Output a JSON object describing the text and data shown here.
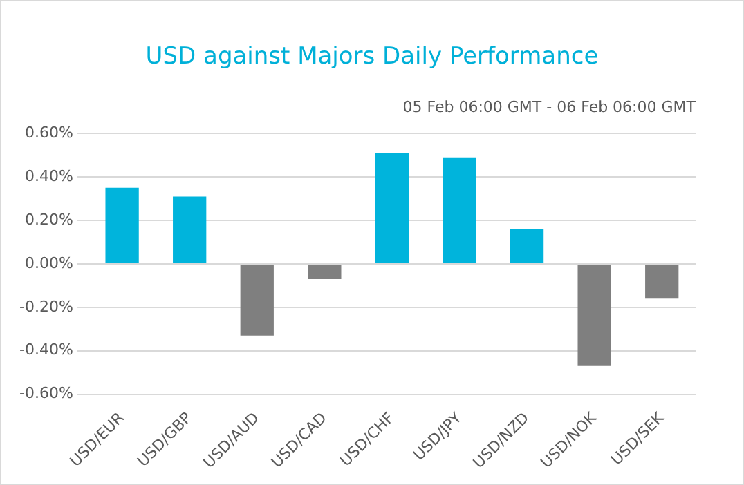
{
  "chart_data": {
    "type": "bar",
    "title": "USD against Majors Daily Performance",
    "subtitle": "05  Feb 06:00 GMT - 06 Feb  06:00 GMT",
    "categories": [
      "USD/EUR",
      "USD/GBP",
      "USD/AUD",
      "USD/CAD",
      "USD/CHF",
      "USD/JPY",
      "USD/NZD",
      "USD/NOK",
      "USD/SEK"
    ],
    "values": [
      0.35,
      0.31,
      -0.33,
      -0.07,
      0.51,
      0.49,
      0.16,
      -0.47,
      -0.16
    ],
    "colors": [
      "#00b4dc",
      "#00b4dc",
      "#7f7f7f",
      "#7f7f7f",
      "#00b4dc",
      "#00b4dc",
      "#00b4dc",
      "#7f7f7f",
      "#7f7f7f"
    ],
    "ylim": [
      -0.6,
      0.6
    ],
    "yticks": [
      {
        "value": -0.6,
        "label": "-0.60%"
      },
      {
        "value": -0.4,
        "label": "-0.40%"
      },
      {
        "value": -0.2,
        "label": "-0.20%"
      },
      {
        "value": 0,
        "label": "0.00%"
      },
      {
        "value": 0.2,
        "label": "0.20%"
      },
      {
        "value": 0.4,
        "label": "0.40%"
      },
      {
        "value": 0.6,
        "label": "0.60%"
      }
    ],
    "grid": "y",
    "legend": false
  }
}
